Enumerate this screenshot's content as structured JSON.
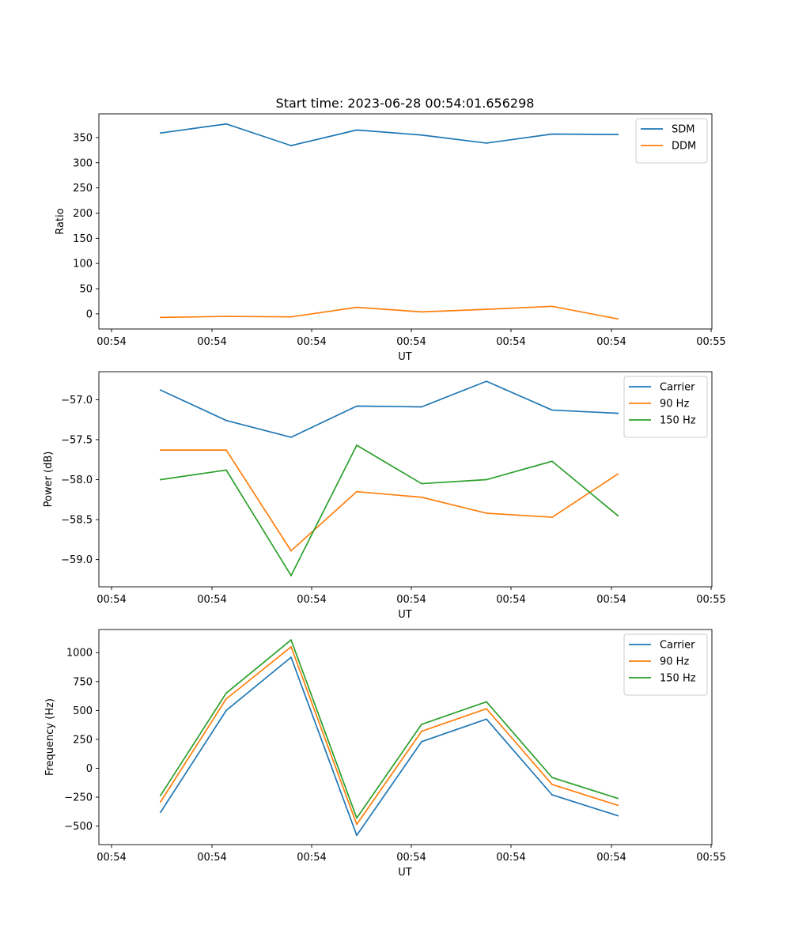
{
  "title": "Start time: 2023-06-28 00:54:01.656298",
  "colors": {
    "blue": "#1f77b4",
    "orange": "#ff7f0e",
    "green": "#2ca02c"
  },
  "chart_data": [
    {
      "type": "line",
      "xlabel": "UT",
      "ylabel": "Ratio",
      "x_tick_labels": [
        "00:54",
        "00:54",
        "00:54",
        "00:54",
        "00:54",
        "00:54",
        "00:55"
      ],
      "y_ticks": [
        0,
        50,
        100,
        150,
        200,
        250,
        300,
        350
      ],
      "y_tick_labels": [
        "0",
        "50",
        "100",
        "150",
        "200",
        "250",
        "300",
        "350"
      ],
      "ylim": [
        -30,
        397
      ],
      "legend_position": "upper right",
      "series": [
        {
          "name": "SDM",
          "color": "blue",
          "values": [
            359,
            377,
            334,
            365,
            355,
            339,
            357,
            356
          ]
        },
        {
          "name": "DDM",
          "color": "orange",
          "values": [
            -7,
            -5,
            -6,
            13,
            4,
            9,
            15,
            -10
          ]
        }
      ]
    },
    {
      "type": "line",
      "xlabel": "UT",
      "ylabel": "Power (dB)",
      "x_tick_labels": [
        "00:54",
        "00:54",
        "00:54",
        "00:54",
        "00:54",
        "00:54",
        "00:55"
      ],
      "y_ticks": [
        -59.0,
        -58.5,
        -58.0,
        -57.5,
        -57.0
      ],
      "y_tick_labels": [
        "−59.0",
        "−58.5",
        "−58.0",
        "−57.5",
        "−57.0"
      ],
      "ylim": [
        -59.34,
        -56.65
      ],
      "legend_position": "upper right",
      "series": [
        {
          "name": "Carrier",
          "color": "blue",
          "values": [
            -56.88,
            -57.26,
            -57.47,
            -57.08,
            -57.09,
            -56.77,
            -57.13,
            -57.17
          ]
        },
        {
          "name": "90 Hz",
          "color": "orange",
          "values": [
            -57.63,
            -57.63,
            -58.89,
            -58.15,
            -58.22,
            -58.42,
            -58.47,
            -57.93
          ]
        },
        {
          "name": "150 Hz",
          "color": "green",
          "values": [
            -58.0,
            -57.88,
            -59.2,
            -57.57,
            -58.05,
            -58.0,
            -57.77,
            -58.45
          ]
        }
      ]
    },
    {
      "type": "line",
      "xlabel": "UT",
      "ylabel": "Frequency (Hz)",
      "x_tick_labels": [
        "00:54",
        "00:54",
        "00:54",
        "00:54",
        "00:54",
        "00:54",
        "00:55"
      ],
      "y_ticks": [
        -500,
        -250,
        0,
        250,
        500,
        750,
        1000
      ],
      "y_tick_labels": [
        "−500",
        "−250",
        "0",
        "250",
        "500",
        "750",
        "1000"
      ],
      "ylim": [
        -660,
        1200
      ],
      "legend_position": "upper right",
      "series": [
        {
          "name": "Carrier",
          "color": "blue",
          "values": [
            -380,
            500,
            960,
            -580,
            230,
            425,
            -230,
            -410
          ]
        },
        {
          "name": "90 Hz",
          "color": "orange",
          "values": [
            -290,
            600,
            1050,
            -485,
            320,
            515,
            -140,
            -320
          ]
        },
        {
          "name": "150 Hz",
          "color": "green",
          "values": [
            -235,
            650,
            1110,
            -430,
            380,
            575,
            -80,
            -260
          ]
        }
      ]
    }
  ]
}
